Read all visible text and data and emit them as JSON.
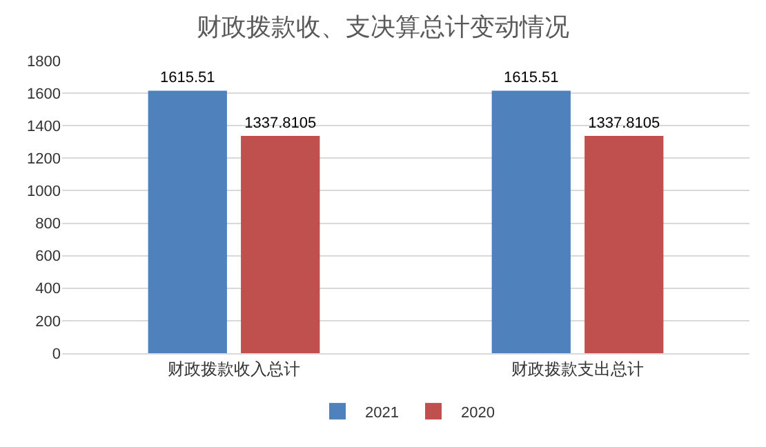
{
  "chart_data": {
    "type": "bar",
    "title": "财政拨款收、支决算总计变动情况",
    "categories": [
      "财政拨款收入总计",
      "财政拨款支出总计"
    ],
    "series": [
      {
        "name": "2021",
        "color": "#4f81bd",
        "values": [
          1615.51,
          1615.51
        ]
      },
      {
        "name": "2020",
        "color": "#c0504d",
        "values": [
          1337.8105,
          1337.8105
        ]
      }
    ],
    "ylim": [
      0,
      1800
    ],
    "yticks": [
      0,
      200,
      400,
      600,
      800,
      1000,
      1200,
      1400,
      1600,
      1800
    ],
    "grid": "y",
    "legend": "bottom",
    "data_labels": true
  }
}
